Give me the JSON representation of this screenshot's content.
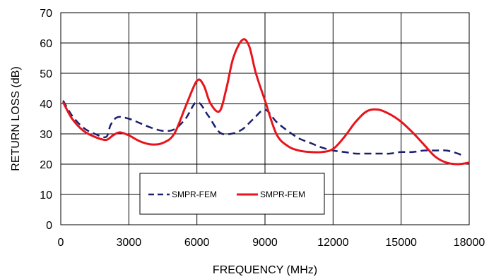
{
  "chart_data": {
    "type": "line",
    "title": "",
    "xlabel": "FREQUENCY (MHz)",
    "ylabel": "RETURN LOSS (dB)",
    "xlim": [
      0,
      18000
    ],
    "ylim": [
      0,
      70
    ],
    "xticks": [
      0,
      3000,
      6000,
      9000,
      12000,
      15000,
      18000
    ],
    "yticks": [
      0,
      10,
      20,
      30,
      40,
      50,
      60,
      70
    ],
    "grid": true,
    "legend_position": "bottom-center",
    "series": [
      {
        "name": "SMPR-FEM",
        "style": "dashed",
        "color": "#1a1f6e",
        "x": [
          100,
          500,
          1000,
          1500,
          2000,
          2200,
          2500,
          3000,
          3500,
          4000,
          4500,
          5000,
          5500,
          6000,
          6500,
          7000,
          7500,
          8000,
          8500,
          9000,
          9500,
          10000,
          10500,
          11000,
          11500,
          12000,
          12500,
          13000,
          13500,
          14000,
          14500,
          15000,
          15500,
          16000,
          16500,
          17000,
          17500,
          17800
        ],
        "y": [
          41,
          36,
          32,
          30,
          29,
          33,
          35.5,
          35,
          33.5,
          32,
          31,
          31.5,
          35,
          40.5,
          36,
          30.5,
          30,
          31.5,
          35,
          38,
          34,
          31,
          28.5,
          27,
          25.5,
          24.5,
          24,
          23.5,
          23.5,
          23.5,
          23.5,
          24,
          24,
          24.5,
          24.5,
          24.5,
          23.5,
          22.5
        ]
      },
      {
        "name": "SMPR-FEM",
        "style": "solid",
        "color": "#e8141b",
        "x": [
          100,
          500,
          1000,
          1500,
          2000,
          2300,
          2600,
          3000,
          3500,
          4000,
          4500,
          5000,
          5500,
          6000,
          6300,
          6600,
          7000,
          7300,
          7600,
          8000,
          8300,
          8600,
          9000,
          9500,
          10000,
          10500,
          11000,
          11500,
          12000,
          12500,
          13000,
          13500,
          14000,
          14500,
          15000,
          15500,
          16000,
          16500,
          17000,
          17500,
          18000
        ],
        "y": [
          40.5,
          35,
          31,
          29,
          28,
          29.5,
          30.5,
          29.5,
          27.5,
          26.5,
          27,
          30,
          39,
          47.5,
          46,
          40,
          37.5,
          45,
          55,
          61,
          59,
          50,
          41,
          30,
          26,
          24.5,
          24,
          24,
          25,
          29,
          34,
          37.5,
          38,
          36.5,
          34,
          30.5,
          26.5,
          22.5,
          20.5,
          20,
          20.5
        ]
      }
    ]
  }
}
